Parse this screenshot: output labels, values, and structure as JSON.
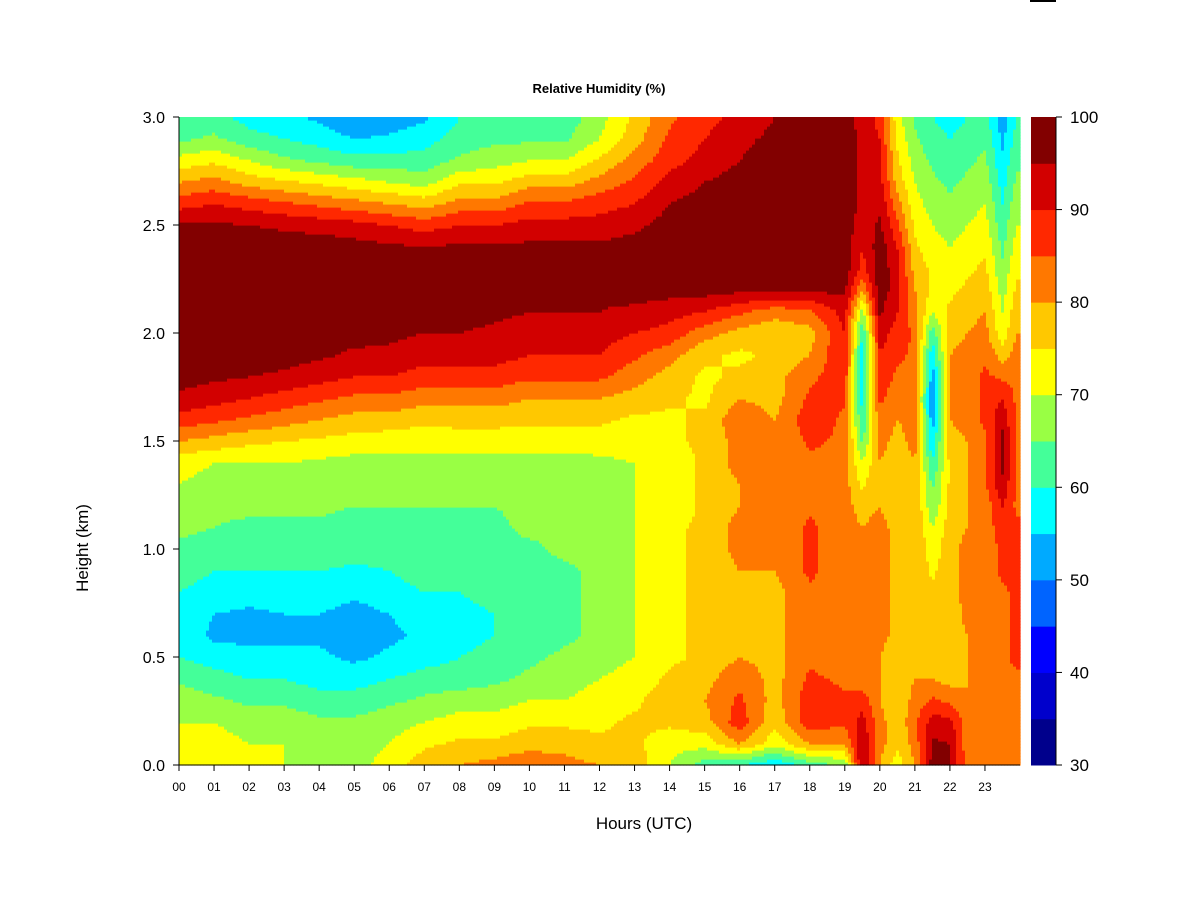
{
  "chart_data": {
    "type": "heatmap",
    "title": "Relative Humidity (%)",
    "xlabel": "Hours (UTC)",
    "ylabel": "Height (km)",
    "xlim": [
      0,
      24
    ],
    "ylim": [
      0,
      3
    ],
    "x_ticks": [
      "00",
      "01",
      "02",
      "03",
      "04",
      "05",
      "06",
      "07",
      "08",
      "09",
      "10",
      "11",
      "12",
      "13",
      "14",
      "15",
      "16",
      "17",
      "18",
      "19",
      "20",
      "21",
      "22",
      "23"
    ],
    "y_ticks": [
      "0.0",
      "0.5",
      "1.0",
      "1.5",
      "2.0",
      "2.5",
      "3.0"
    ],
    "y_tick_values": [
      0,
      0.5,
      1.0,
      1.5,
      2.0,
      2.5,
      3.0
    ],
    "colorbar": {
      "min": 30,
      "max": 100,
      "step": 5,
      "tick_labels": [
        "30",
        "40",
        "50",
        "60",
        "70",
        "80",
        "90",
        "100"
      ],
      "tick_values": [
        30,
        40,
        50,
        60,
        70,
        80,
        90,
        100
      ],
      "colors": [
        "#00008C",
        "#0000CC",
        "#0000FF",
        "#0064FF",
        "#00AAFF",
        "#00FFFF",
        "#44FF99",
        "#99FF44",
        "#FFFF00",
        "#FFC800",
        "#FF7800",
        "#FF2800",
        "#D20000",
        "#820000"
      ]
    },
    "heights_km": [
      0.0,
      0.1,
      0.2,
      0.3,
      0.4,
      0.5,
      0.6,
      0.7,
      0.8,
      0.9,
      1.0,
      1.1,
      1.2,
      1.3,
      1.4,
      1.5,
      1.6,
      1.7,
      1.8,
      1.9,
      2.0,
      2.1,
      2.2,
      2.3,
      2.4,
      2.5,
      2.6,
      2.7,
      2.8,
      2.9,
      3.0
    ],
    "times_utc": [
      0,
      1,
      2,
      3,
      4,
      5,
      6,
      7,
      8,
      9,
      10,
      11,
      12,
      13,
      14,
      15,
      16,
      17,
      18,
      19,
      19.5,
      20,
      20.5,
      21,
      21.5,
      22,
      22.5,
      23,
      23.5,
      23.9
    ],
    "rh_values": [
      [
        72,
        74,
        72,
        70,
        68,
        68,
        72,
        78,
        80,
        82,
        84,
        82,
        80,
        78,
        70,
        62,
        60,
        55,
        62,
        66,
        96,
        80,
        72,
        80,
        97,
        96,
        82,
        80,
        82,
        80
      ],
      [
        72,
        72,
        70,
        70,
        68,
        68,
        70,
        74,
        76,
        76,
        78,
        78,
        76,
        76,
        72,
        72,
        80,
        72,
        80,
        80,
        95,
        82,
        76,
        82,
        96,
        95,
        82,
        80,
        82,
        80
      ],
      [
        70,
        70,
        68,
        68,
        66,
        66,
        68,
        70,
        72,
        72,
        74,
        74,
        74,
        76,
        76,
        78,
        88,
        76,
        88,
        86,
        92,
        82,
        76,
        84,
        92,
        92,
        82,
        80,
        82,
        82
      ],
      [
        68,
        66,
        64,
        64,
        62,
        62,
        64,
        66,
        68,
        68,
        70,
        70,
        72,
        74,
        78,
        80,
        86,
        78,
        88,
        86,
        88,
        80,
        76,
        82,
        86,
        84,
        80,
        80,
        82,
        82
      ],
      [
        64,
        62,
        60,
        60,
        58,
        58,
        60,
        62,
        62,
        64,
        66,
        68,
        70,
        72,
        76,
        78,
        84,
        78,
        86,
        84,
        82,
        80,
        76,
        80,
        80,
        78,
        80,
        80,
        84,
        84
      ],
      [
        60,
        58,
        56,
        56,
        56,
        54,
        56,
        58,
        60,
        62,
        64,
        66,
        68,
        70,
        74,
        76,
        80,
        78,
        84,
        82,
        80,
        80,
        76,
        80,
        78,
        76,
        80,
        80,
        84,
        86
      ],
      [
        58,
        54,
        54,
        54,
        54,
        52,
        54,
        56,
        58,
        60,
        62,
        64,
        66,
        70,
        74,
        76,
        80,
        78,
        84,
        82,
        80,
        82,
        78,
        80,
        78,
        76,
        80,
        80,
        84,
        86
      ],
      [
        58,
        55,
        54,
        55,
        55,
        53,
        55,
        57,
        58,
        60,
        62,
        64,
        66,
        70,
        74,
        76,
        80,
        78,
        84,
        82,
        82,
        82,
        78,
        80,
        78,
        76,
        82,
        82,
        84,
        86
      ],
      [
        60,
        58,
        57,
        58,
        58,
        56,
        58,
        60,
        60,
        62,
        62,
        64,
        66,
        70,
        74,
        76,
        80,
        78,
        84,
        82,
        82,
        82,
        78,
        80,
        76,
        78,
        82,
        82,
        84,
        86
      ],
      [
        62,
        60,
        60,
        60,
        60,
        59,
        60,
        62,
        62,
        62,
        64,
        64,
        66,
        70,
        74,
        76,
        80,
        80,
        86,
        82,
        82,
        82,
        78,
        80,
        74,
        78,
        82,
        82,
        86,
        86
      ],
      [
        64,
        63,
        62,
        63,
        63,
        62,
        62,
        63,
        64,
        64,
        64,
        66,
        68,
        70,
        74,
        76,
        82,
        80,
        86,
        82,
        82,
        82,
        78,
        80,
        72,
        78,
        82,
        82,
        86,
        86
      ],
      [
        66,
        65,
        64,
        64,
        64,
        63,
        64,
        64,
        64,
        64,
        66,
        66,
        68,
        70,
        74,
        76,
        82,
        80,
        86,
        82,
        80,
        82,
        78,
        80,
        70,
        78,
        80,
        82,
        88,
        86
      ],
      [
        68,
        66,
        66,
        66,
        66,
        65,
        65,
        65,
        65,
        65,
        66,
        68,
        68,
        70,
        72,
        76,
        80,
        80,
        84,
        82,
        78,
        80,
        76,
        80,
        66,
        76,
        80,
        82,
        90,
        84
      ],
      [
        70,
        68,
        68,
        68,
        67,
        66,
        66,
        66,
        66,
        66,
        67,
        68,
        68,
        70,
        72,
        76,
        80,
        80,
        84,
        82,
        74,
        80,
        76,
        80,
        64,
        76,
        80,
        84,
        94,
        84
      ],
      [
        72,
        70,
        70,
        70,
        69,
        68,
        68,
        68,
        68,
        68,
        68,
        68,
        69,
        70,
        72,
        76,
        82,
        80,
        84,
        82,
        70,
        80,
        76,
        80,
        60,
        76,
        80,
        84,
        96,
        84
      ],
      [
        80,
        78,
        76,
        75,
        74,
        73,
        72,
        72,
        72,
        72,
        72,
        72,
        72,
        72,
        74,
        76,
        82,
        80,
        86,
        84,
        64,
        82,
        78,
        82,
        56,
        78,
        80,
        84,
        96,
        84
      ],
      [
        88,
        86,
        84,
        82,
        80,
        78,
        78,
        76,
        77,
        77,
        76,
        76,
        76,
        74,
        74,
        76,
        84,
        80,
        88,
        84,
        60,
        84,
        80,
        82,
        52,
        80,
        82,
        86,
        94,
        84
      ],
      [
        94,
        92,
        90,
        88,
        86,
        84,
        84,
        82,
        82,
        82,
        80,
        80,
        80,
        78,
        76,
        74,
        80,
        78,
        86,
        86,
        58,
        86,
        82,
        82,
        50,
        80,
        82,
        86,
        90,
        84
      ],
      [
        97,
        96,
        95,
        94,
        92,
        90,
        90,
        88,
        88,
        88,
        86,
        86,
        86,
        82,
        78,
        74,
        76,
        78,
        84,
        88,
        56,
        88,
        84,
        84,
        52,
        80,
        82,
        86,
        84,
        84
      ],
      [
        99,
        98,
        98,
        97,
        96,
        94,
        94,
        92,
        92,
        92,
        90,
        90,
        90,
        86,
        82,
        76,
        74,
        76,
        80,
        90,
        56,
        90,
        86,
        84,
        56,
        80,
        82,
        84,
        78,
        82
      ],
      [
        100,
        100,
        100,
        99,
        98,
        97,
        96,
        95,
        95,
        94,
        93,
        93,
        92,
        90,
        88,
        82,
        78,
        76,
        78,
        90,
        60,
        92,
        88,
        84,
        62,
        78,
        80,
        82,
        72,
        80
      ],
      [
        100,
        100,
        100,
        100,
        99,
        98,
        98,
        97,
        97,
        96,
        95,
        95,
        95,
        94,
        92,
        90,
        86,
        82,
        84,
        92,
        68,
        96,
        90,
        82,
        70,
        76,
        78,
        80,
        70,
        78
      ],
      [
        100,
        100,
        100,
        100,
        100,
        99,
        99,
        98,
        99,
        98,
        97,
        96,
        96,
        97,
        97,
        97,
        96,
        96,
        96,
        96,
        80,
        98,
        92,
        80,
        74,
        74,
        76,
        78,
        68,
        76
      ],
      [
        100,
        100,
        100,
        100,
        100,
        99,
        99,
        98,
        99,
        98,
        97,
        97,
        97,
        98,
        98,
        98,
        98,
        98,
        98,
        98,
        88,
        98,
        92,
        78,
        74,
        72,
        74,
        76,
        66,
        74
      ],
      [
        99,
        99,
        99,
        98,
        98,
        97,
        96,
        95,
        96,
        96,
        96,
        96,
        96,
        97,
        98,
        98,
        98,
        98,
        98,
        98,
        90,
        98,
        90,
        76,
        72,
        70,
        72,
        74,
        64,
        72
      ],
      [
        96,
        96,
        95,
        94,
        93,
        92,
        90,
        88,
        90,
        90,
        92,
        92,
        92,
        94,
        97,
        98,
        98,
        98,
        98,
        98,
        92,
        96,
        86,
        74,
        70,
        68,
        70,
        72,
        62,
        70
      ],
      [
        88,
        90,
        88,
        86,
        84,
        82,
        80,
        78,
        82,
        82,
        86,
        86,
        88,
        90,
        95,
        97,
        98,
        98,
        98,
        98,
        94,
        94,
        82,
        72,
        68,
        66,
        68,
        70,
        60,
        68
      ],
      [
        80,
        82,
        78,
        76,
        74,
        72,
        70,
        68,
        74,
        74,
        78,
        78,
        82,
        86,
        92,
        95,
        97,
        98,
        98,
        98,
        94,
        92,
        78,
        70,
        66,
        64,
        66,
        68,
        58,
        66
      ],
      [
        72,
        74,
        70,
        66,
        64,
        62,
        62,
        62,
        66,
        68,
        70,
        70,
        76,
        82,
        88,
        92,
        95,
        97,
        97,
        98,
        94,
        90,
        76,
        68,
        64,
        62,
        64,
        66,
        56,
        64
      ],
      [
        64,
        66,
        62,
        60,
        58,
        55,
        56,
        58,
        62,
        64,
        64,
        64,
        70,
        78,
        86,
        90,
        94,
        96,
        96,
        97,
        94,
        90,
        74,
        66,
        62,
        60,
        62,
        64,
        54,
        62
      ],
      [
        62,
        62,
        58,
        56,
        54,
        50,
        52,
        54,
        60,
        62,
        60,
        62,
        68,
        76,
        84,
        88,
        92,
        95,
        95,
        96,
        94,
        88,
        72,
        64,
        60,
        58,
        60,
        62,
        52,
        60
      ]
    ]
  }
}
